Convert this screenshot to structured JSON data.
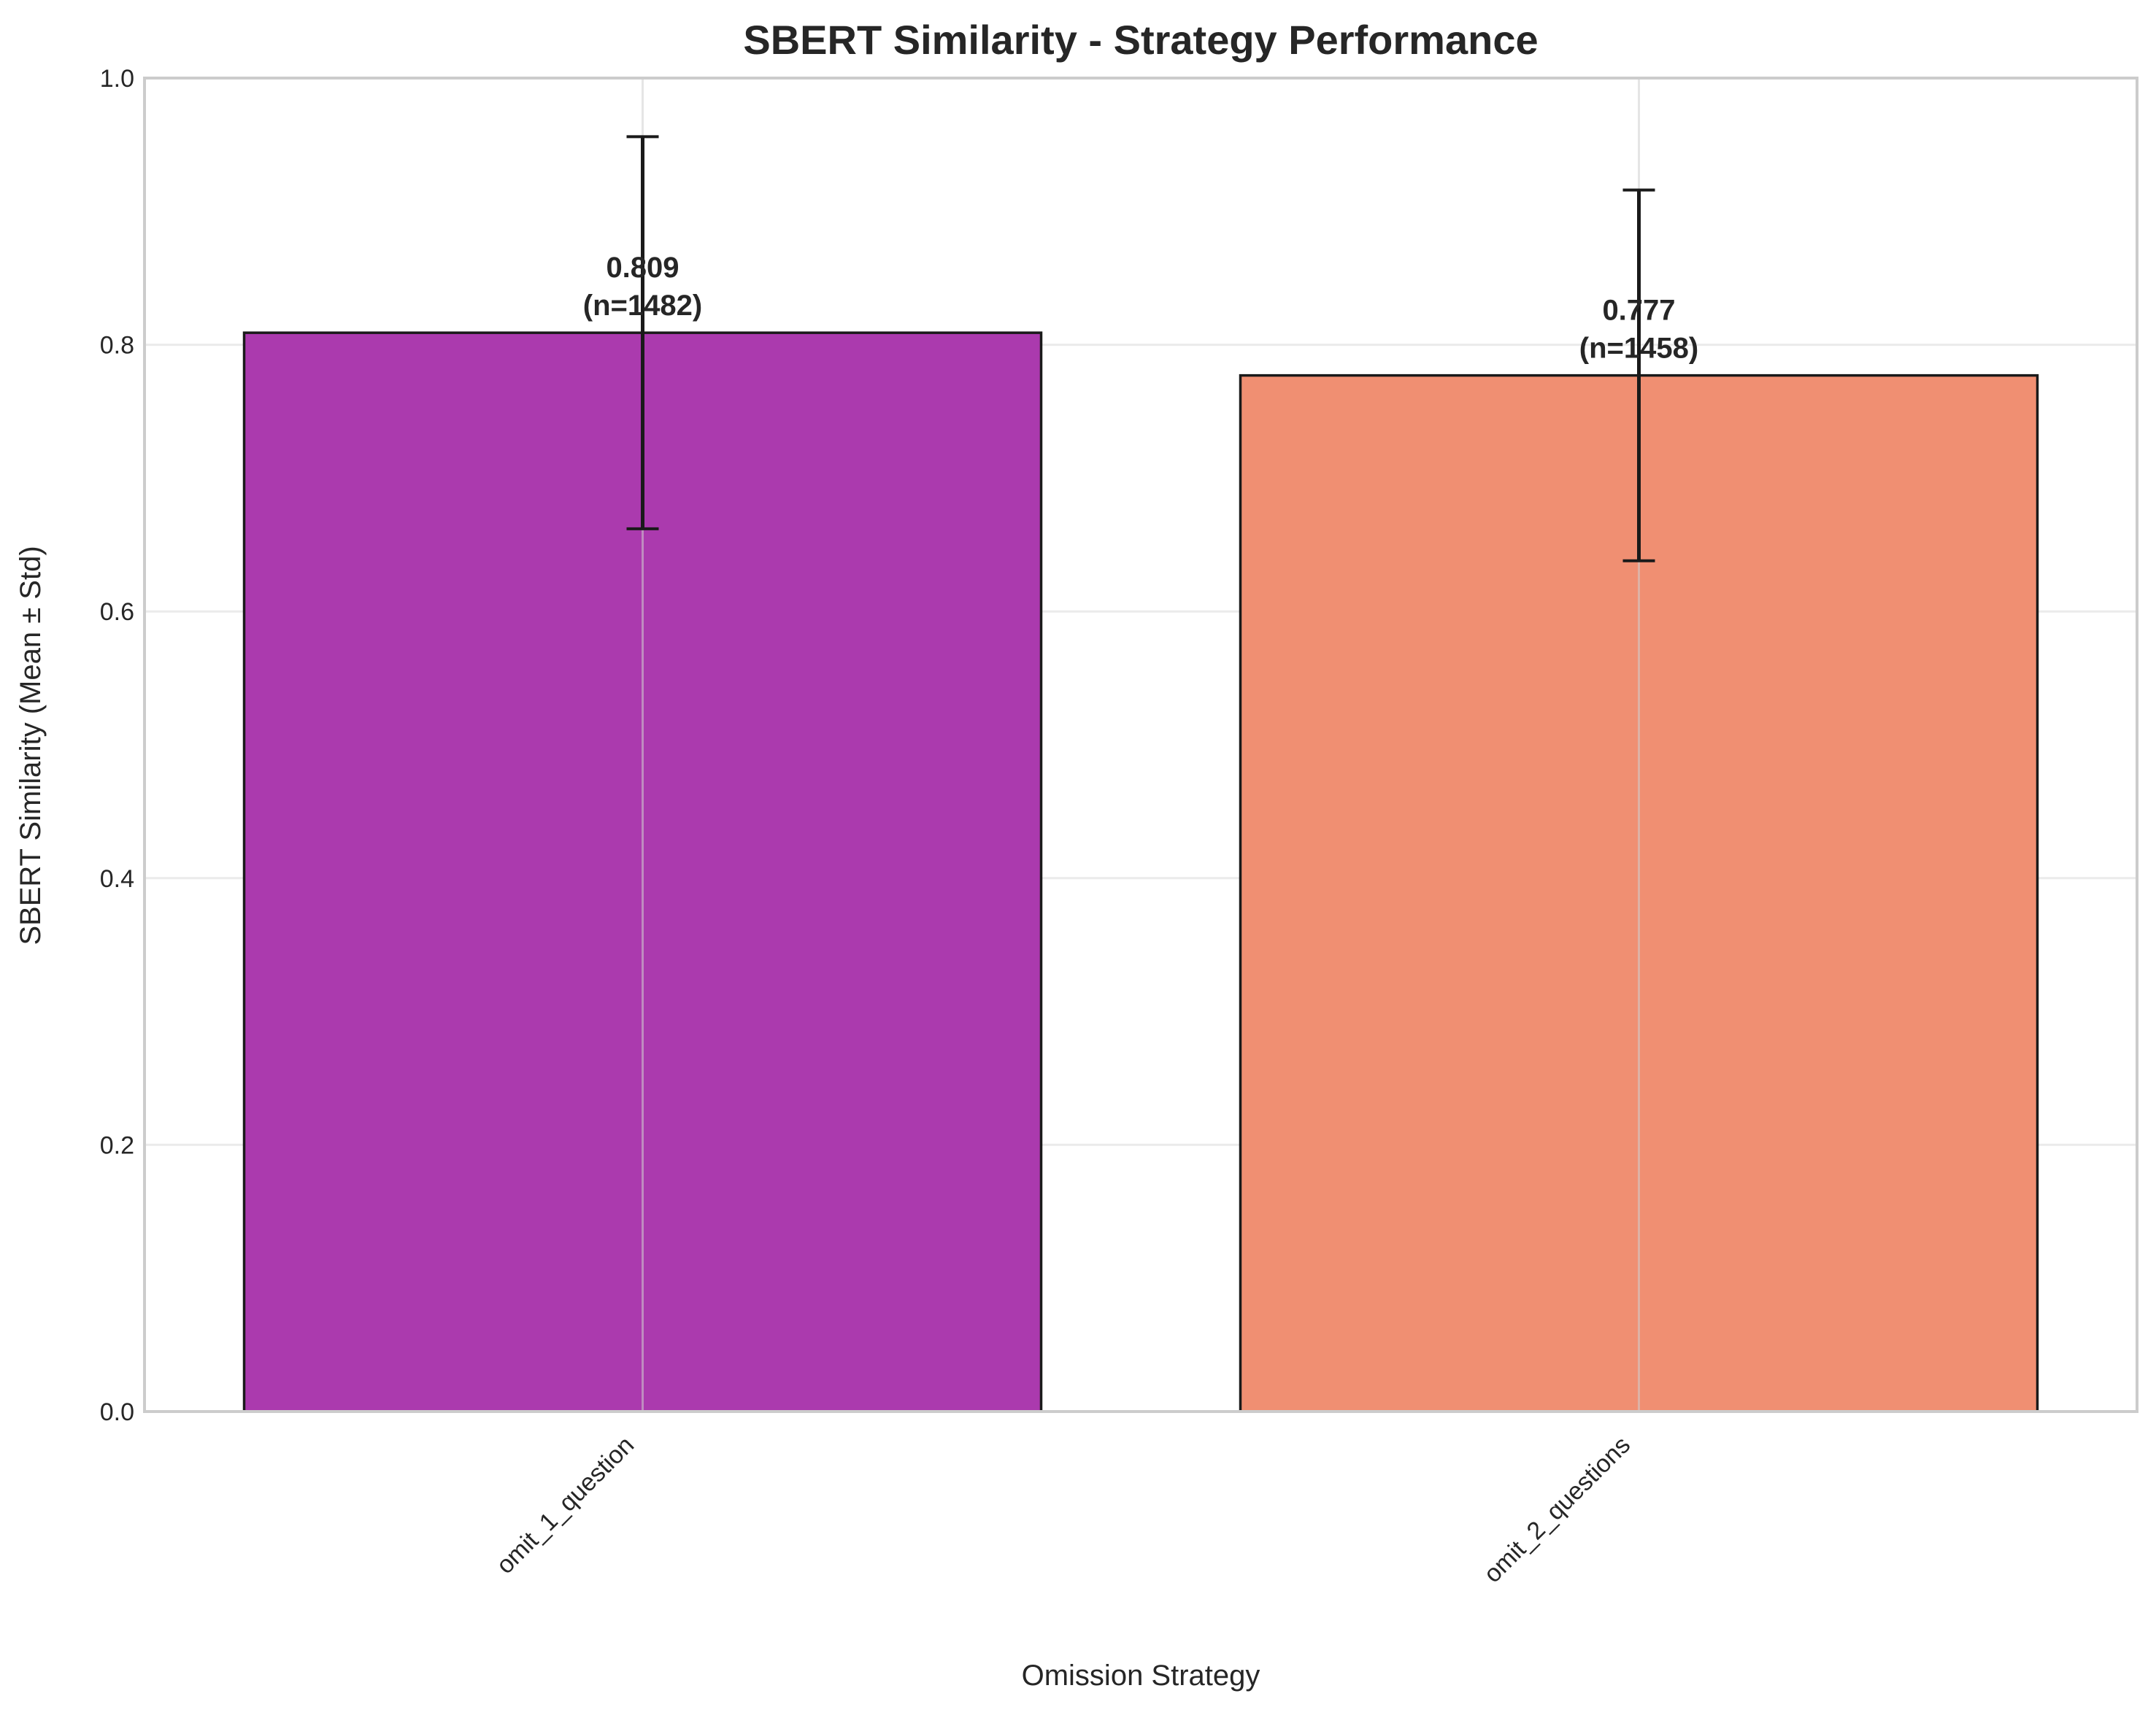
{
  "chart_data": {
    "type": "bar",
    "title": "SBERT Similarity - Strategy Performance",
    "xlabel": "Omission Strategy",
    "ylabel": "SBERT Similarity (Mean ± Std)",
    "ylim": [
      0,
      1.0
    ],
    "yticks": [
      "0.0",
      "0.2",
      "0.4",
      "0.6",
      "0.8",
      "1.0"
    ],
    "grid": true,
    "categories": [
      "omit_1_question",
      "omit_2_questions"
    ],
    "values": [
      0.809,
      0.777
    ],
    "std": [
      0.147,
      0.139
    ],
    "data_labels": [
      [
        "0.809",
        "(n=1482)"
      ],
      [
        "0.777",
        "(n=1458)"
      ]
    ],
    "colors": [
      "#ab3aae",
      "#f08f72"
    ],
    "edge_color": "#1a1a1a",
    "grid_color": "#ebebeb",
    "frame_color": "#cccccc"
  }
}
